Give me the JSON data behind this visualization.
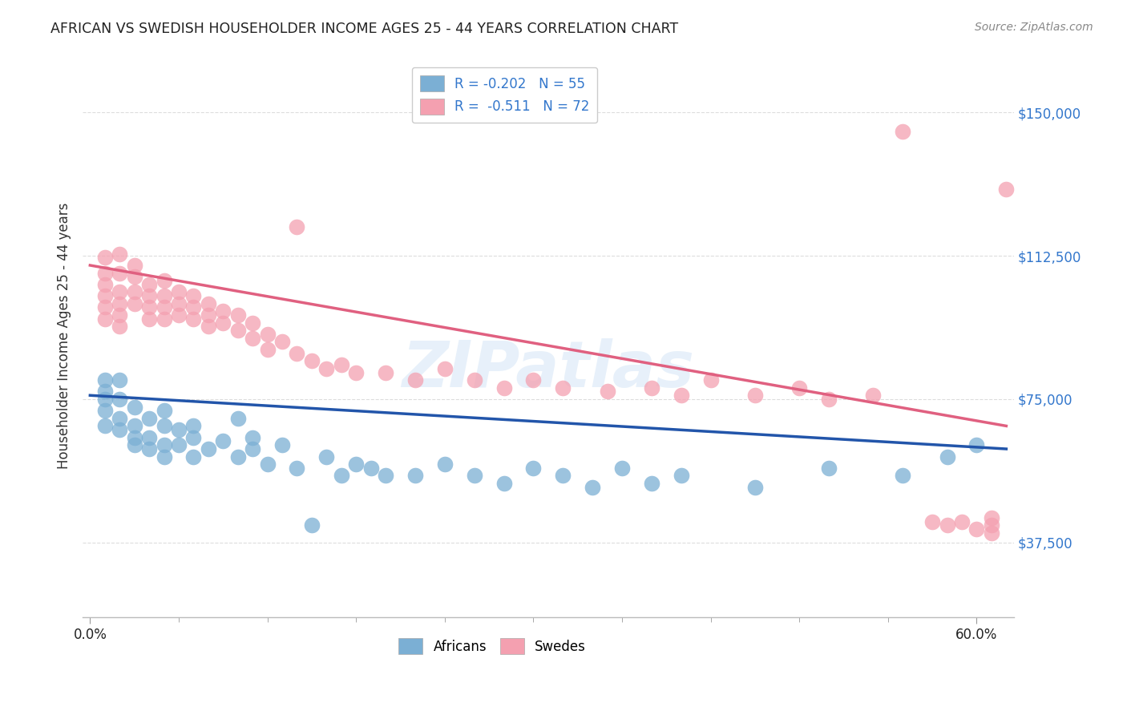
{
  "title": "AFRICAN VS SWEDISH HOUSEHOLDER INCOME AGES 25 - 44 YEARS CORRELATION CHART",
  "source": "Source: ZipAtlas.com",
  "ylabel": "Householder Income Ages 25 - 44 years",
  "ytick_labels": [
    "$37,500",
    "$75,000",
    "$112,500",
    "$150,000"
  ],
  "ytick_values": [
    37500,
    75000,
    112500,
    150000
  ],
  "ylim": [
    18000,
    165000
  ],
  "xlim": [
    -0.005,
    0.625
  ],
  "legend_label1": "R = -0.202   N = 55",
  "legend_label2": "R =  -0.511   N = 72",
  "color_african": "#7BAFD4",
  "color_swedish": "#F4A0B0",
  "line_color_african": "#2255AA",
  "line_color_swedish": "#E06080",
  "watermark": "ZIPatlas",
  "africans_x": [
    0.01,
    0.01,
    0.01,
    0.01,
    0.01,
    0.02,
    0.02,
    0.02,
    0.02,
    0.03,
    0.03,
    0.03,
    0.03,
    0.04,
    0.04,
    0.04,
    0.05,
    0.05,
    0.05,
    0.05,
    0.06,
    0.06,
    0.07,
    0.07,
    0.07,
    0.08,
    0.09,
    0.1,
    0.1,
    0.11,
    0.11,
    0.12,
    0.13,
    0.14,
    0.15,
    0.16,
    0.17,
    0.18,
    0.19,
    0.2,
    0.22,
    0.24,
    0.26,
    0.28,
    0.3,
    0.32,
    0.34,
    0.36,
    0.38,
    0.4,
    0.45,
    0.5,
    0.55,
    0.58,
    0.6
  ],
  "africans_y": [
    80000,
    77000,
    75000,
    72000,
    68000,
    80000,
    75000,
    70000,
    67000,
    73000,
    68000,
    65000,
    63000,
    70000,
    65000,
    62000,
    72000,
    68000,
    63000,
    60000,
    67000,
    63000,
    68000,
    65000,
    60000,
    62000,
    64000,
    70000,
    60000,
    65000,
    62000,
    58000,
    63000,
    57000,
    42000,
    60000,
    55000,
    58000,
    57000,
    55000,
    55000,
    58000,
    55000,
    53000,
    57000,
    55000,
    52000,
    57000,
    53000,
    55000,
    52000,
    57000,
    55000,
    60000,
    63000
  ],
  "swedes_x": [
    0.01,
    0.01,
    0.01,
    0.01,
    0.01,
    0.01,
    0.02,
    0.02,
    0.02,
    0.02,
    0.02,
    0.02,
    0.03,
    0.03,
    0.03,
    0.03,
    0.04,
    0.04,
    0.04,
    0.04,
    0.05,
    0.05,
    0.05,
    0.05,
    0.06,
    0.06,
    0.06,
    0.07,
    0.07,
    0.07,
    0.08,
    0.08,
    0.08,
    0.09,
    0.09,
    0.1,
    0.1,
    0.11,
    0.11,
    0.12,
    0.12,
    0.13,
    0.14,
    0.15,
    0.16,
    0.17,
    0.18,
    0.2,
    0.22,
    0.24,
    0.26,
    0.28,
    0.3,
    0.32,
    0.35,
    0.38,
    0.4,
    0.42,
    0.45,
    0.48,
    0.5,
    0.53,
    0.55,
    0.57,
    0.58,
    0.59,
    0.6,
    0.61,
    0.61,
    0.61,
    0.62,
    0.14
  ],
  "swedes_y": [
    112000,
    108000,
    105000,
    102000,
    99000,
    96000,
    113000,
    108000,
    103000,
    100000,
    97000,
    94000,
    110000,
    107000,
    103000,
    100000,
    105000,
    102000,
    99000,
    96000,
    106000,
    102000,
    99000,
    96000,
    103000,
    100000,
    97000,
    102000,
    99000,
    96000,
    100000,
    97000,
    94000,
    98000,
    95000,
    97000,
    93000,
    95000,
    91000,
    92000,
    88000,
    90000,
    87000,
    85000,
    83000,
    84000,
    82000,
    82000,
    80000,
    83000,
    80000,
    78000,
    80000,
    78000,
    77000,
    78000,
    76000,
    80000,
    76000,
    78000,
    75000,
    76000,
    145000,
    43000,
    42000,
    43000,
    41000,
    42000,
    44000,
    40000,
    130000,
    120000
  ],
  "african_trend_x": [
    0.0,
    0.62
  ],
  "african_trend_y": [
    76000,
    62000
  ],
  "swedish_trend_x": [
    0.0,
    0.62
  ],
  "swedish_trend_y": [
    110000,
    68000
  ],
  "background_color": "#FFFFFF",
  "grid_color": "#DDDDDD",
  "xtick_minor_positions": [
    0.0,
    0.06,
    0.12,
    0.18,
    0.24,
    0.3,
    0.36,
    0.42,
    0.48,
    0.54,
    0.6
  ]
}
